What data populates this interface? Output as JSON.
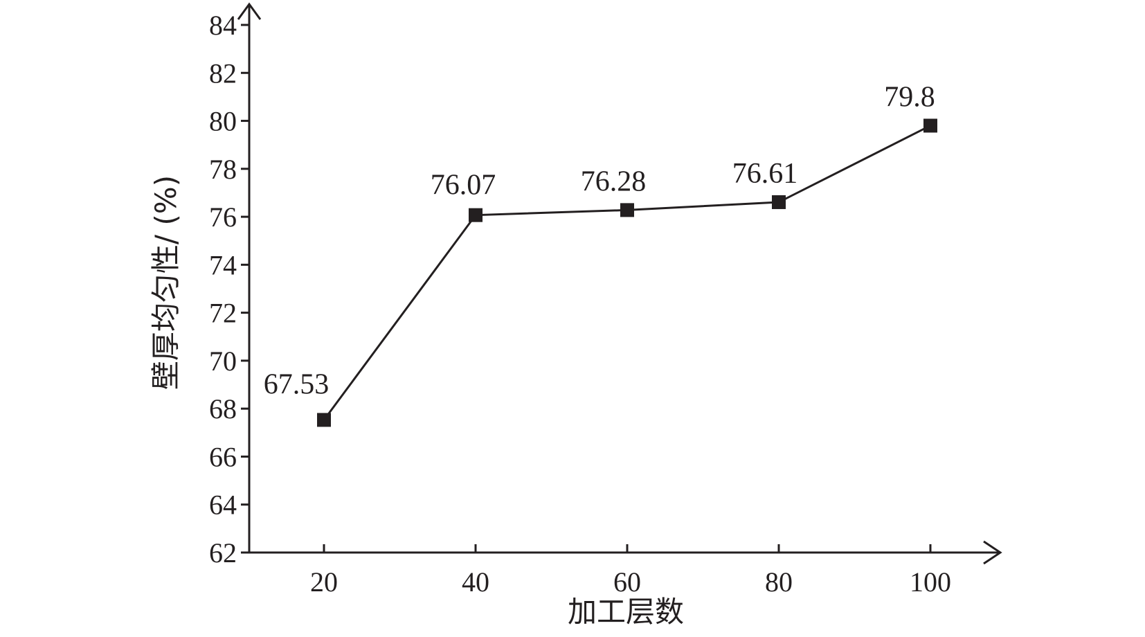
{
  "chart_data": {
    "type": "line",
    "x": [
      20,
      40,
      60,
      80,
      100
    ],
    "series": [
      {
        "values": [
          67.53,
          76.07,
          76.28,
          76.61,
          79.8
        ]
      }
    ],
    "data_labels": [
      "67.53",
      "76.07",
      "76.28",
      "76.61",
      "79.8"
    ],
    "xlabel": "加工层数",
    "ylabel": "壁厚均匀性/ (%)",
    "xticks": [
      "20",
      "40",
      "60",
      "80",
      "100"
    ],
    "yticks": [
      "62",
      "64",
      "66",
      "68",
      "70",
      "72",
      "74",
      "76",
      "78",
      "80",
      "82",
      "84"
    ],
    "ylim": [
      62,
      84
    ],
    "grid": false,
    "legend": "none",
    "marker": "square",
    "line_color": "#231f20"
  }
}
